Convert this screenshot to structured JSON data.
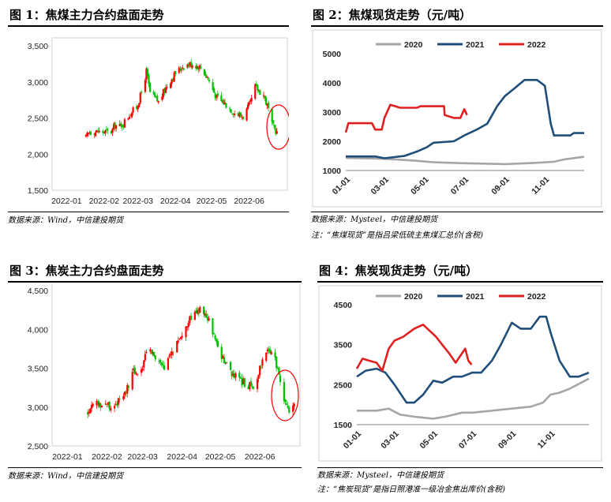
{
  "panels": [
    {
      "title": "图 1：焦煤主力合约盘面走势",
      "source": "数据来源：Wind，中信建投期货",
      "note": ""
    },
    {
      "title": "图 2：焦煤现货走势（元/吨）",
      "source": "数据来源：Mysteel，中信建投期货",
      "note": "注：“焦煤现货”是指吕梁低硫主焦煤汇总价(含税)"
    },
    {
      "title": "图 3：焦炭主力合约盘面走势",
      "source": "数据来源：Wind，中信建投期货",
      "note": ""
    },
    {
      "title": "图 4：焦炭现货走势（元/吨）",
      "source": "数据来源：Mysteel，中信建投期货",
      "note": "注：“焦炭现货”是指日照港准一级冶金焦出库价(含税)"
    }
  ],
  "colors": {
    "up": "#ff0000",
    "down": "#00c000",
    "s2020": "#a6a6a6",
    "s2021": "#1f4e79",
    "s2022": "#e02020",
    "highlight": "#ff0000"
  },
  "chart_data": [
    {
      "type": "candlestick",
      "title": "",
      "x_ticks": [
        "2022-01",
        "2022-02",
        "2022-03",
        "2022-04",
        "2022-05",
        "2022-06"
      ],
      "y_ticks": [
        "1,500",
        "2,000",
        "2,500",
        "3,000",
        "3,500"
      ],
      "ylim": [
        1500,
        3500
      ],
      "x_range": [
        "2021-12-20",
        "2022-06-30"
      ],
      "highlight": "last candles circled in red",
      "anchors": [
        [
          "2022-01-17",
          2230
        ],
        [
          "2022-01-20",
          2310
        ],
        [
          "2022-02-07",
          2310
        ],
        [
          "2022-02-10",
          2400
        ],
        [
          "2022-02-15",
          2380
        ],
        [
          "2022-02-22",
          2550
        ],
        [
          "2022-02-28",
          2650
        ],
        [
          "2022-03-05",
          2900
        ],
        [
          "2022-03-08",
          3150
        ],
        [
          "2022-03-11",
          2850
        ],
        [
          "2022-03-18",
          2720
        ],
        [
          "2022-03-25",
          2950
        ],
        [
          "2022-04-01",
          3120
        ],
        [
          "2022-04-08",
          3230
        ],
        [
          "2022-04-15",
          3250
        ],
        [
          "2022-04-22",
          3200
        ],
        [
          "2022-04-28",
          3050
        ],
        [
          "2022-05-05",
          2780
        ],
        [
          "2022-05-12",
          2700
        ],
        [
          "2022-05-20",
          2570
        ],
        [
          "2022-05-27",
          2520
        ],
        [
          "2022-06-02",
          2700
        ],
        [
          "2022-06-06",
          2930
        ],
        [
          "2022-06-13",
          2820
        ],
        [
          "2022-06-17",
          2620
        ],
        [
          "2022-06-20",
          2400
        ],
        [
          "2022-06-24",
          2300
        ]
      ]
    },
    {
      "type": "line",
      "title": "",
      "x_ticks": [
        "01-01",
        "03-01",
        "05-01",
        "07-01",
        "09-01",
        "11-01"
      ],
      "y_ticks": [
        "1000",
        "2000",
        "3000",
        "4000",
        "5000"
      ],
      "ylim": [
        1000,
        5000
      ],
      "legend": "top",
      "series": [
        {
          "name": "2020",
          "points": [
            [
              "01-01",
              1430
            ],
            [
              "03-01",
              1400
            ],
            [
              "04-15",
              1340
            ],
            [
              "05-15",
              1280
            ],
            [
              "07-01",
              1250
            ],
            [
              "09-01",
              1220
            ],
            [
              "10-15",
              1260
            ],
            [
              "11-15",
              1300
            ],
            [
              "12-01",
              1380
            ],
            [
              "12-31",
              1470
            ]
          ]
        },
        {
          "name": "2021",
          "points": [
            [
              "01-01",
              1480
            ],
            [
              "02-15",
              1480
            ],
            [
              "03-01",
              1420
            ],
            [
              "04-01",
              1500
            ],
            [
              "04-20",
              1650
            ],
            [
              "05-05",
              1800
            ],
            [
              "05-15",
              1950
            ],
            [
              "06-15",
              2000
            ],
            [
              "07-01",
              2200
            ],
            [
              "07-20",
              2400
            ],
            [
              "08-05",
              2600
            ],
            [
              "08-20",
              3200
            ],
            [
              "09-01",
              3550
            ],
            [
              "09-15",
              3800
            ],
            [
              "10-01",
              4100
            ],
            [
              "10-20",
              4100
            ],
            [
              "10-25",
              4020
            ],
            [
              "11-01",
              3900
            ],
            [
              "11-10",
              2600
            ],
            [
              "11-15",
              2200
            ],
            [
              "12-10",
              2200
            ],
            [
              "12-15",
              2280
            ],
            [
              "12-31",
              2280
            ]
          ]
        },
        {
          "name": "2022",
          "points": [
            [
              "01-01",
              2300
            ],
            [
              "01-05",
              2620
            ],
            [
              "02-10",
              2620
            ],
            [
              "02-15",
              2400
            ],
            [
              "02-25",
              2400
            ],
            [
              "03-01",
              2800
            ],
            [
              "03-10",
              3250
            ],
            [
              "03-25",
              3150
            ],
            [
              "04-10",
              3150
            ],
            [
              "04-20",
              3150
            ],
            [
              "04-25",
              3200
            ],
            [
              "05-31",
              3200
            ],
            [
              "06-01",
              2900
            ],
            [
              "06-15",
              2800
            ],
            [
              "06-25",
              2800
            ],
            [
              "07-01",
              3100
            ],
            [
              "07-05",
              2900
            ]
          ]
        }
      ]
    },
    {
      "type": "candlestick",
      "title": "",
      "x_ticks": [
        "2022-01",
        "2022-02",
        "2022-03",
        "2022-04",
        "2022-05",
        "2022-06"
      ],
      "y_ticks": [
        "2,500",
        "3,000",
        "3,500",
        "4,000",
        "4,500"
      ],
      "ylim": [
        2500,
        4500
      ],
      "x_range": [
        "2021-12-20",
        "2022-06-30"
      ],
      "highlight": "last candles circled in red",
      "anchors": [
        [
          "2022-01-17",
          2920
        ],
        [
          "2022-01-20",
          3050
        ],
        [
          "2022-02-07",
          3020
        ],
        [
          "2022-02-15",
          3150
        ],
        [
          "2022-02-22",
          3450
        ],
        [
          "2022-02-28",
          3450
        ],
        [
          "2022-03-05",
          3820
        ],
        [
          "2022-03-10",
          3650
        ],
        [
          "2022-03-18",
          3480
        ],
        [
          "2022-03-25",
          3750
        ],
        [
          "2022-04-01",
          3950
        ],
        [
          "2022-04-08",
          4150
        ],
        [
          "2022-04-15",
          4250
        ],
        [
          "2022-04-22",
          4100
        ],
        [
          "2022-04-28",
          3800
        ],
        [
          "2022-05-05",
          3550
        ],
        [
          "2022-05-12",
          3400
        ],
        [
          "2022-05-20",
          3300
        ],
        [
          "2022-05-27",
          3250
        ],
        [
          "2022-06-02",
          3550
        ],
        [
          "2022-06-06",
          3750
        ],
        [
          "2022-06-13",
          3600
        ],
        [
          "2022-06-17",
          3300
        ],
        [
          "2022-06-20",
          3100
        ],
        [
          "2022-06-24",
          2950
        ],
        [
          "2022-06-28",
          3050
        ]
      ]
    },
    {
      "type": "line",
      "title": "",
      "x_ticks": [
        "01-01",
        "03-01",
        "05-01",
        "07-01",
        "09-01",
        "11-01"
      ],
      "y_ticks": [
        "1500",
        "2500",
        "3500",
        "4500"
      ],
      "ylim": [
        1500,
        4500
      ],
      "legend": "top",
      "series": [
        {
          "name": "2020",
          "points": [
            [
              "01-01",
              1850
            ],
            [
              "02-01",
              1850
            ],
            [
              "02-20",
              1900
            ],
            [
              "03-10",
              1750
            ],
            [
              "04-01",
              1700
            ],
            [
              "05-01",
              1650
            ],
            [
              "05-20",
              1700
            ],
            [
              "06-15",
              1800
            ],
            [
              "07-01",
              1800
            ],
            [
              "08-01",
              1850
            ],
            [
              "09-01",
              1900
            ],
            [
              "10-01",
              1950
            ],
            [
              "10-20",
              2050
            ],
            [
              "11-01",
              2250
            ],
            [
              "11-15",
              2300
            ],
            [
              "12-01",
              2400
            ],
            [
              "12-31",
              2650
            ]
          ]
        },
        {
          "name": "2021",
          "points": [
            [
              "01-01",
              2700
            ],
            [
              "01-15",
              2850
            ],
            [
              "02-01",
              2900
            ],
            [
              "02-15",
              2800
            ],
            [
              "03-01",
              2500
            ],
            [
              "03-20",
              2050
            ],
            [
              "04-01",
              2050
            ],
            [
              "04-15",
              2250
            ],
            [
              "05-01",
              2600
            ],
            [
              "05-15",
              2550
            ],
            [
              "06-01",
              2700
            ],
            [
              "06-15",
              2700
            ],
            [
              "07-01",
              2800
            ],
            [
              "07-15",
              2800
            ],
            [
              "08-01",
              3100
            ],
            [
              "08-15",
              3500
            ],
            [
              "09-01",
              4050
            ],
            [
              "09-15",
              3900
            ],
            [
              "10-01",
              3900
            ],
            [
              "10-15",
              4200
            ],
            [
              "10-25",
              4200
            ],
            [
              "11-01",
              3800
            ],
            [
              "11-15",
              3100
            ],
            [
              "12-01",
              2700
            ],
            [
              "12-15",
              2700
            ],
            [
              "12-31",
              2800
            ]
          ]
        },
        {
          "name": "2022",
          "points": [
            [
              "01-01",
              2900
            ],
            [
              "01-10",
              3150
            ],
            [
              "01-20",
              3100
            ],
            [
              "02-01",
              3050
            ],
            [
              "02-10",
              2850
            ],
            [
              "02-20",
              3400
            ],
            [
              "03-01",
              3600
            ],
            [
              "03-15",
              3700
            ],
            [
              "04-01",
              3900
            ],
            [
              "04-15",
              4000
            ],
            [
              "04-25",
              3850
            ],
            [
              "05-05",
              3700
            ],
            [
              "05-15",
              3500
            ],
            [
              "05-25",
              3300
            ],
            [
              "06-05",
              3050
            ],
            [
              "06-20",
              3400
            ],
            [
              "06-25",
              3100
            ],
            [
              "06-30",
              3000
            ]
          ]
        }
      ]
    }
  ]
}
